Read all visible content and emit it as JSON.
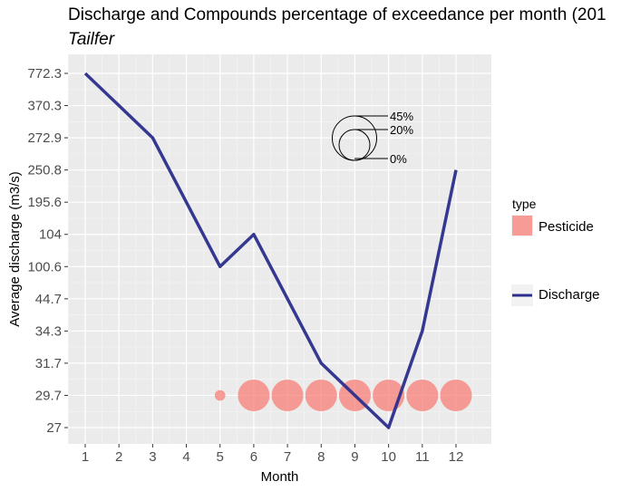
{
  "title": "Discharge and Compounds percentage of exceedance per month (201",
  "subtitle": "Tailfer",
  "colors": {
    "panel_bg": "#ebebeb",
    "grid_major": "#ffffff",
    "discharge_line": "#2b2e8c",
    "pesticide_fill": "#f8766d"
  },
  "chart_data": {
    "type": "line",
    "xlabel": "Month",
    "ylabel": "Average discharge (m3/s)",
    "x_ticks": [
      "1",
      "2",
      "3",
      "4",
      "5",
      "6",
      "7",
      "8",
      "9",
      "10",
      "11",
      "12"
    ],
    "y_ticks": [
      "27",
      "29.7",
      "31.7",
      "34.3",
      "44.7",
      "100.6",
      "104",
      "195.6",
      "250.8",
      "272.9",
      "370.3",
      "772.3"
    ],
    "y_axis_note": "categorical/ordinal y axis; values placed by tick order",
    "series": [
      {
        "name": "Discharge",
        "type": "line",
        "x": [
          1,
          2,
          3,
          5,
          6,
          8,
          10,
          11,
          12
        ],
        "y": [
          "772.3",
          "370.3",
          "272.9",
          "100.6",
          "104",
          "31.7",
          "27",
          "34.3",
          "250.8"
        ]
      },
      {
        "name": "Pesticide",
        "type": "bubble",
        "x": [
          5,
          6,
          7,
          8,
          9,
          10,
          11,
          12
        ],
        "y": [
          "29.7",
          "29.7",
          "29.7",
          "29.7",
          "29.7",
          "29.7",
          "29.7",
          "29.7"
        ],
        "percent_exceedance": [
          5,
          45,
          45,
          45,
          45,
          45,
          45,
          45
        ]
      }
    ],
    "size_legend": {
      "labels": [
        "45%",
        "20%",
        "0%"
      ],
      "values": [
        45,
        20,
        0
      ]
    },
    "legend": {
      "title": "type",
      "items": [
        {
          "label": "Pesticide",
          "kind": "point"
        },
        {
          "label": "Discharge",
          "kind": "line"
        }
      ]
    }
  }
}
